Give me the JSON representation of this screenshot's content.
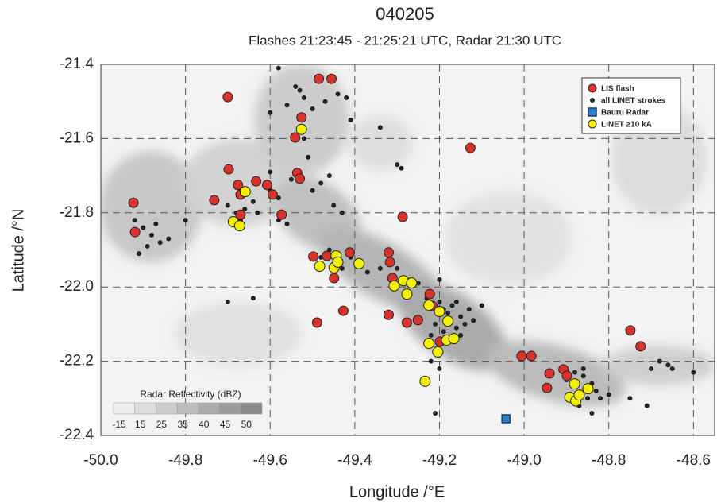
{
  "chart_data": {
    "type": "scatter",
    "title": "040205",
    "subtitle": "Flashes 21:23:45 - 21:25:21 UTC, Radar 21:30 UTC",
    "x_label": "Longitude /°E",
    "y_label": "Latitude /°N",
    "xlim": [
      -50.0,
      -48.55
    ],
    "ylim": [
      -22.4,
      -21.4
    ],
    "xticks": [
      {
        "value": -50.0,
        "label": "-50.0"
      },
      -49.8,
      -49.6,
      -49.4,
      -49.2,
      {
        "value": -49.0,
        "label": "-49.0"
      },
      -48.8,
      -48.6
    ],
    "yticks": [
      -21.4,
      -21.6,
      -21.8,
      {
        "value": -22.0,
        "label": "-22.0"
      },
      -22.2,
      -22.4
    ],
    "grid": true,
    "legend": "upper right",
    "colorbar": {
      "title": "Radar Reflectivity (dBZ)",
      "labels": [
        -15,
        15,
        25,
        35,
        40,
        45,
        50
      ]
    },
    "series": [
      {
        "name": "all LINET strokes",
        "color": "#222222",
        "marker": "circle",
        "size": 3,
        "x": [
          -49.92,
          -49.9,
          -49.88,
          -49.89,
          -49.91,
          -49.87,
          -49.86,
          -49.84,
          -49.8,
          -49.7,
          -49.68,
          -49.66,
          -49.64,
          -49.67,
          -49.63,
          -49.6,
          -49.58,
          -49.58,
          -49.56,
          -49.6,
          -49.55,
          -49.5,
          -49.46,
          -49.54,
          -49.53,
          -49.52,
          -49.56,
          -49.5,
          -49.47,
          -49.44,
          -49.42,
          -49.6,
          -49.58,
          -49.52,
          -49.51,
          -49.48,
          -49.45,
          -49.43,
          -49.48,
          -49.46,
          -49.43,
          -49.41,
          -49.39,
          -49.37,
          -49.34,
          -49.3,
          -49.29,
          -49.27,
          -49.25,
          -49.23,
          -49.21,
          -49.2,
          -49.19,
          -49.18,
          -49.17,
          -49.16,
          -49.15,
          -49.14,
          -49.13,
          -49.12,
          -49.16,
          -49.19,
          -49.21,
          -49.22,
          -49.18,
          -49.15,
          -49.1,
          -49.22,
          -49.2,
          -49.21,
          -49.3,
          -49.29,
          -49.2,
          -49.7,
          -49.64,
          -49.41,
          -49.34,
          -48.9,
          -48.88,
          -48.86,
          -48.84,
          -48.83,
          -48.85,
          -48.87,
          -48.89,
          -48.82,
          -48.8,
          -48.86,
          -48.84,
          -48.7,
          -48.68,
          -48.66,
          -48.65,
          -48.6,
          -48.71,
          -48.75
        ],
        "y": [
          -21.82,
          -21.84,
          -21.86,
          -21.89,
          -21.91,
          -21.83,
          -21.88,
          -21.87,
          -21.82,
          -21.78,
          -21.8,
          -21.79,
          -21.77,
          -21.82,
          -21.8,
          -21.74,
          -21.76,
          -21.82,
          -21.83,
          -21.69,
          -21.71,
          -21.74,
          -21.7,
          -21.46,
          -21.47,
          -21.49,
          -21.51,
          -21.52,
          -21.5,
          -21.48,
          -21.49,
          -21.53,
          -21.41,
          -21.6,
          -21.65,
          -21.72,
          -21.78,
          -21.8,
          -21.92,
          -21.9,
          -21.95,
          -21.92,
          -21.94,
          -21.96,
          -21.95,
          -21.95,
          -21.98,
          -21.99,
          -21.99,
          -22.03,
          -22.05,
          -22.04,
          -22.06,
          -22.07,
          -22.05,
          -22.04,
          -22.08,
          -22.1,
          -22.06,
          -22.09,
          -22.11,
          -22.12,
          -22.1,
          -22.13,
          -22.15,
          -22.13,
          -22.05,
          -22.2,
          -22.22,
          -22.34,
          -21.67,
          -21.68,
          -21.98,
          -22.04,
          -22.03,
          -21.55,
          -21.57,
          -22.25,
          -22.23,
          -22.24,
          -22.26,
          -22.28,
          -22.3,
          -22.32,
          -22.3,
          -22.3,
          -22.29,
          -22.22,
          -22.34,
          -22.22,
          -22.2,
          -22.21,
          -22.22,
          -22.23,
          -22.32,
          -22.3
        ]
      },
      {
        "name": "LIS flash",
        "color": "#d9322b",
        "marker": "circle",
        "size": 6,
        "x": [
          -49.923,
          -49.919,
          -49.7,
          -49.732,
          -49.698,
          -49.676,
          -49.67,
          -49.67,
          -49.633,
          -49.607,
          -49.594,
          -49.573,
          -49.541,
          -49.536,
          -49.53,
          -49.526,
          -49.485,
          -49.455,
          -49.498,
          -49.489,
          -49.466,
          -49.449,
          -49.427,
          -49.412,
          -49.32,
          -49.317,
          -49.32,
          -49.311,
          -49.287,
          -49.277,
          -49.251,
          -49.223,
          -49.217,
          -49.199,
          -49.127,
          -49.006,
          -48.983,
          -48.94,
          -48.946,
          -48.907,
          -48.899,
          -48.749,
          -48.725
        ],
        "y": [
          -21.773,
          -21.852,
          -21.488,
          -21.766,
          -21.683,
          -21.725,
          -21.751,
          -21.805,
          -21.715,
          -21.725,
          -21.751,
          -21.805,
          -21.597,
          -21.693,
          -21.708,
          -21.543,
          -21.439,
          -21.439,
          -21.918,
          -22.096,
          -21.916,
          -21.976,
          -22.064,
          -21.907,
          -21.907,
          -21.933,
          -22.075,
          -21.976,
          -21.811,
          -22.096,
          -22.089,
          -22.019,
          -22.051,
          -22.147,
          -21.625,
          -22.186,
          -22.186,
          -22.233,
          -22.272,
          -22.222,
          -22.239,
          -22.117,
          -22.16
        ]
      },
      {
        "name": "Bauru Radar",
        "color": "#2a7fd0",
        "marker": "square",
        "size": 5,
        "x": [
          -49.043
        ],
        "y": [
          -22.355
        ]
      },
      {
        "name": "LINET  ≥10 kA",
        "color": "#f5f000",
        "marker": "circle",
        "size": 6.5,
        "x": [
          -49.687,
          -49.672,
          -49.659,
          -49.526,
          -49.483,
          -49.449,
          -49.444,
          -49.44,
          -49.39,
          -49.307,
          -49.285,
          -49.277,
          -49.266,
          -49.225,
          -49.2,
          -49.18,
          -49.225,
          -49.204,
          -49.183,
          -49.166,
          -49.234,
          -48.881,
          -48.849,
          -48.892,
          -48.878,
          -48.87
        ],
        "y": [
          -21.824,
          -21.835,
          -21.743,
          -21.575,
          -21.944,
          -21.948,
          -21.916,
          -21.933,
          -21.937,
          -21.997,
          -21.983,
          -22.019,
          -21.989,
          -22.049,
          -22.066,
          -22.092,
          -22.152,
          -22.175,
          -22.143,
          -22.139,
          -22.254,
          -22.261,
          -22.274,
          -22.297,
          -22.307,
          -22.291
        ]
      }
    ]
  }
}
